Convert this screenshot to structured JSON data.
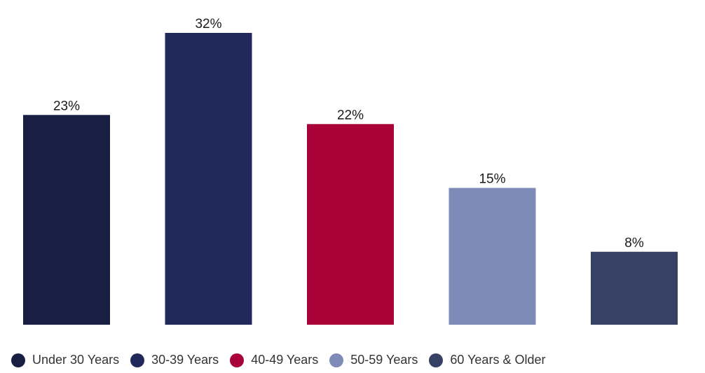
{
  "chart_data": {
    "type": "bar",
    "categories": [
      "Under 30 Years",
      "30-39 Years",
      "40-49 Years",
      "50-59 Years",
      "60 Years & Older"
    ],
    "values": [
      23,
      32,
      22,
      15,
      8
    ],
    "value_labels": [
      "23%",
      "32%",
      "22%",
      "15%",
      "8%"
    ],
    "colors": [
      "#181f42",
      "#21295a",
      "#a90238",
      "#7e8bb9",
      "#374163"
    ],
    "ylim": [
      0,
      32
    ],
    "grid": false,
    "legend_position": "bottom"
  },
  "legend": {
    "items": [
      {
        "label": "Under 30 Years",
        "color": "#181f42"
      },
      {
        "label": "30-39 Years",
        "color": "#21295a"
      },
      {
        "label": "40-49 Years",
        "color": "#a90238"
      },
      {
        "label": "50-59 Years",
        "color": "#7e8bb9"
      },
      {
        "label": "60 Years & Older",
        "color": "#374163"
      }
    ]
  }
}
